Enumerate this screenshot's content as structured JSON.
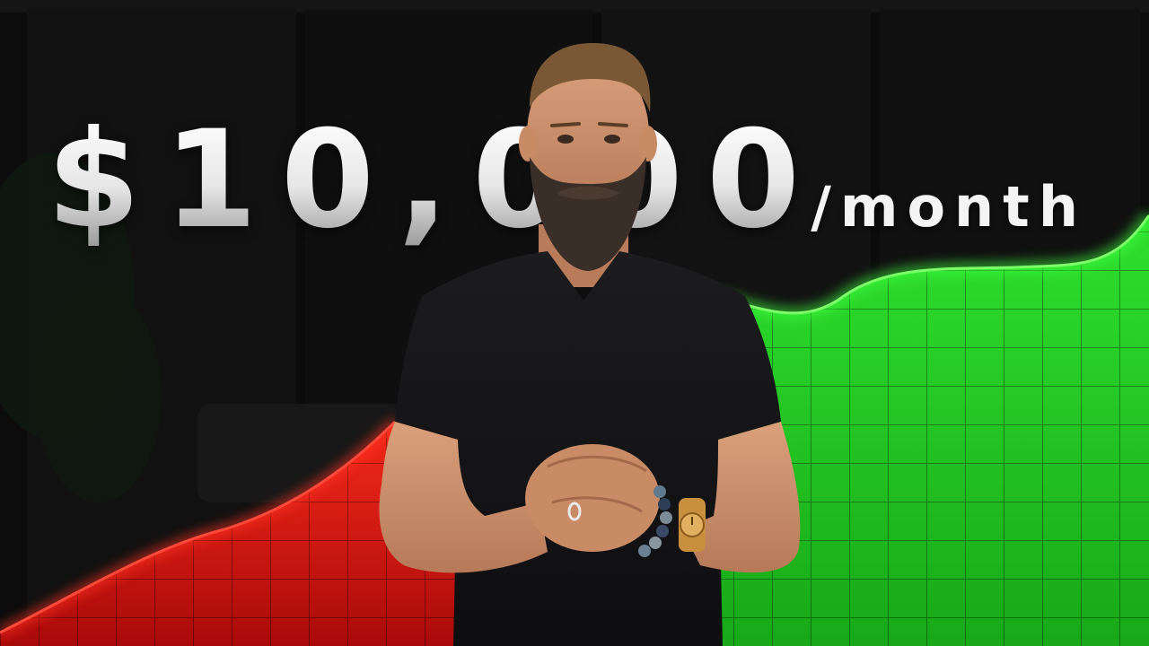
{
  "headline": {
    "amount": "$10,000",
    "suffix": "/month"
  },
  "colors": {
    "loss": "#e01818",
    "gain": "#22d022",
    "text": "#f2f2f2"
  },
  "icons": {
    "loss_chart": "red-declining-chart-icon",
    "gain_chart": "green-rising-chart-icon"
  }
}
